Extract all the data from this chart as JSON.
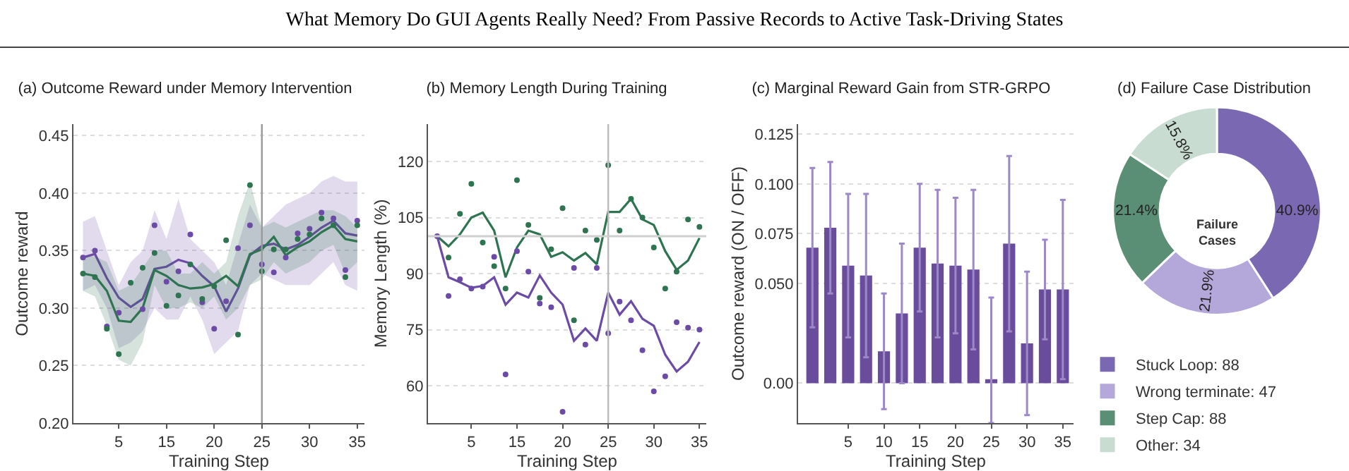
{
  "chart_data": [
    {
      "type": "other",
      "title": "What Memory Do GUI Agents Really Need? From Passive Records to Active Task-Driving States"
    },
    {
      "type": "line",
      "title": "(a) Outcome Reward under Memory Intervention",
      "xlabel": "Training Step",
      "ylabel": "Outcome reward",
      "categories": [
        null,
        null,
        null,
        "5",
        null,
        null,
        null,
        "15",
        null,
        null,
        null,
        "20",
        null,
        null,
        null,
        "25",
        null,
        null,
        null,
        "30",
        null,
        null,
        null,
        "35"
      ],
      "ylim": [
        0.2,
        0.46
      ],
      "yticks": [
        {
          "value": 0.2,
          "label": "0.20"
        },
        0.25,
        {
          "value": 0.3,
          "label": "0.30"
        },
        0.35,
        {
          "value": 0.4,
          "label": "0.40"
        },
        0.45
      ],
      "grid": "y",
      "ref_lines": [
        {
          "axis": "x",
          "value": "25",
          "color": "#999999"
        }
      ],
      "series": [
        {
          "type": "line",
          "color": "#6b4ba6",
          "values": [
            0.344,
            0.347,
            0.326,
            0.309,
            0.301,
            0.308,
            0.334,
            0.336,
            0.342,
            0.339,
            0.328,
            0.319,
            0.297,
            0.317,
            0.346,
            0.354,
            0.356,
            0.351,
            0.355,
            0.362,
            0.37,
            0.376,
            0.365,
            0.363
          ],
          "lower": [
            0.315,
            0.32,
            0.3,
            0.265,
            0.27,
            0.28,
            0.3,
            0.29,
            0.29,
            0.31,
            0.29,
            0.26,
            0.27,
            0.28,
            0.32,
            0.33,
            0.325,
            0.32,
            0.32,
            0.32,
            0.33,
            0.34,
            0.32,
            0.315
          ],
          "upper": [
            0.375,
            0.38,
            0.35,
            0.32,
            0.34,
            0.35,
            0.385,
            0.36,
            0.395,
            0.36,
            0.35,
            0.34,
            0.32,
            0.355,
            0.39,
            0.37,
            0.38,
            0.39,
            0.395,
            0.4,
            0.41,
            0.415,
            0.41,
            0.41
          ]
        },
        {
          "type": "line",
          "color": "#2e7451",
          "values": [
            0.33,
            0.328,
            0.315,
            0.289,
            0.288,
            0.3,
            0.333,
            0.328,
            0.32,
            0.317,
            0.318,
            0.321,
            0.328,
            0.319,
            0.347,
            0.351,
            0.362,
            0.346,
            0.353,
            0.358,
            0.366,
            0.372,
            0.36,
            0.358
          ],
          "lower": [
            0.315,
            0.31,
            0.285,
            0.255,
            0.25,
            0.27,
            0.32,
            0.3,
            0.3,
            0.305,
            0.3,
            0.31,
            0.29,
            0.3,
            0.32,
            0.325,
            0.34,
            0.33,
            0.335,
            0.34,
            0.35,
            0.355,
            0.33,
            0.34
          ],
          "upper": [
            0.345,
            0.345,
            0.34,
            0.315,
            0.32,
            0.335,
            0.35,
            0.35,
            0.33,
            0.33,
            0.34,
            0.33,
            0.34,
            0.38,
            0.41,
            0.37,
            0.375,
            0.37,
            0.375,
            0.38,
            0.385,
            0.385,
            0.38,
            0.37
          ]
        },
        {
          "type": "scatter",
          "color": "#6b4ba6",
          "marker": "circle",
          "values": [
            0.344,
            0.35,
            0.284,
            0.296,
            null,
            0.299,
            0.372,
            0.323,
            0.332,
            0.364,
            0.305,
            0.282,
            0.306,
            0.352,
            0.372,
            0.338,
            0.331,
            0.344,
            0.365,
            0.369,
            0.383,
            0.378,
            0.333,
            0.376
          ]
        },
        {
          "type": "scatter",
          "color": "#2e7451",
          "marker": "circle",
          "values": [
            0.33,
            0.327,
            0.282,
            0.26,
            0.322,
            0.335,
            0.348,
            0.302,
            0.311,
            0.338,
            0.308,
            0.319,
            0.359,
            0.277,
            0.407,
            0.332,
            0.351,
            0.351,
            0.36,
            0.364,
            0.378,
            0.372,
            0.327,
            0.372
          ]
        }
      ]
    },
    {
      "type": "line",
      "title": "(b) Memory Length During Training",
      "xlabel": "Training Step",
      "ylabel": "Memory Length (%)",
      "categories": [
        null,
        null,
        null,
        "5",
        null,
        null,
        null,
        "15",
        null,
        null,
        null,
        "20",
        null,
        null,
        null,
        "25",
        null,
        null,
        null,
        "30",
        null,
        null,
        null,
        "35"
      ],
      "ylim": [
        50,
        130
      ],
      "yticks": [
        60,
        75,
        90,
        105,
        120
      ],
      "grid": "y",
      "ref_lines": [
        {
          "axis": "x",
          "value": "25",
          "color": "#bbbbbb"
        },
        {
          "axis": "y",
          "value": 100,
          "color": "#d0d0d0"
        }
      ],
      "series": [
        {
          "type": "line",
          "color": "#2e7451",
          "values": [
            100,
            97.3,
            100.5,
            105,
            106.3,
            101.5,
            89,
            97,
            101.5,
            100.5,
            94.5,
            95.7,
            93.5,
            95.5,
            92.5,
            106.5,
            106.5,
            110,
            104.5,
            103,
            96,
            91,
            93.5,
            99.5
          ]
        },
        {
          "type": "line",
          "color": "#6b4ba6",
          "values": [
            100,
            89,
            87.7,
            86.2,
            86.7,
            89,
            81.7,
            84.9,
            83.6,
            89.5,
            84.9,
            81.7,
            72,
            75.3,
            72,
            84.9,
            79,
            82.6,
            77.9,
            76,
            68.3,
            63.8,
            66.4,
            71.7
          ]
        },
        {
          "type": "scatter",
          "color": "#2e7451",
          "marker": "circle",
          "values": [
            null,
            94.3,
            106,
            114,
            98.3,
            92,
            86,
            115,
            103,
            83.5,
            96.5,
            107.5,
            77.5,
            101.5,
            99,
            119,
            101.5,
            110,
            105,
            97,
            86,
            90.5,
            104.5,
            102.5
          ]
        },
        {
          "type": "scatter",
          "color": "#6b4ba6",
          "marker": "circle",
          "values": [
            100,
            84,
            88.5,
            86,
            86.5,
            94.5,
            63,
            96,
            90.5,
            82,
            81,
            53,
            91.5,
            71,
            91.5,
            74,
            82.5,
            77.5,
            69.5,
            58.5,
            62.5,
            77,
            75.5,
            75
          ]
        }
      ]
    },
    {
      "type": "bar",
      "title": "(c) Marginal Reward Gain from STR-GRPO",
      "xlabel": "Training Step",
      "ylabel": "Outcome reward (ON / OFF)",
      "categories": [
        null,
        null,
        "5",
        null,
        "10",
        null,
        "15",
        null,
        "20",
        null,
        "25",
        null,
        "30",
        null,
        "35"
      ],
      "ylim": [
        -0.02,
        0.13
      ],
      "yticks": [
        {
          "value": 0,
          "label": "0.00"
        },
        {
          "value": 0.05,
          "label": "0.050"
        },
        0.075,
        {
          "value": 0.1,
          "label": "0.100"
        },
        0.125
      ],
      "grid": "y",
      "series": [
        {
          "color": "#6a4c9c",
          "values": [
            0.068,
            0.078,
            0.059,
            0.054,
            0.016,
            0.035,
            0.068,
            0.06,
            0.059,
            0.057,
            0.002,
            0.07,
            0.02,
            0.047,
            0.047
          ],
          "errors": [
            0.04,
            0.033,
            0.036,
            0.041,
            0.029,
            0.035,
            0.032,
            0.037,
            0.034,
            0.04,
            [
              -0.02,
              0.043
            ],
            0.044,
            0.036,
            0.025,
            0.045
          ]
        }
      ]
    },
    {
      "type": "donut",
      "title": "(d) Failure Case Distribution",
      "categories": [
        "Stuck Loop: 88",
        "Wrong terminate: 47",
        "Step Cap: 88",
        "Other: 34"
      ],
      "values": [
        40.9,
        21.9,
        21.4,
        15.8
      ],
      "colors": [
        "#7b68b3",
        "#b4a7da",
        "#5b8f75",
        "#c9dcd2"
      ],
      "value_labels": [
        "40.9%",
        "21.9%",
        "21.4%",
        "15.8%"
      ],
      "annotations": [
        "Failure Cases"
      ],
      "legend": "bottom"
    }
  ]
}
